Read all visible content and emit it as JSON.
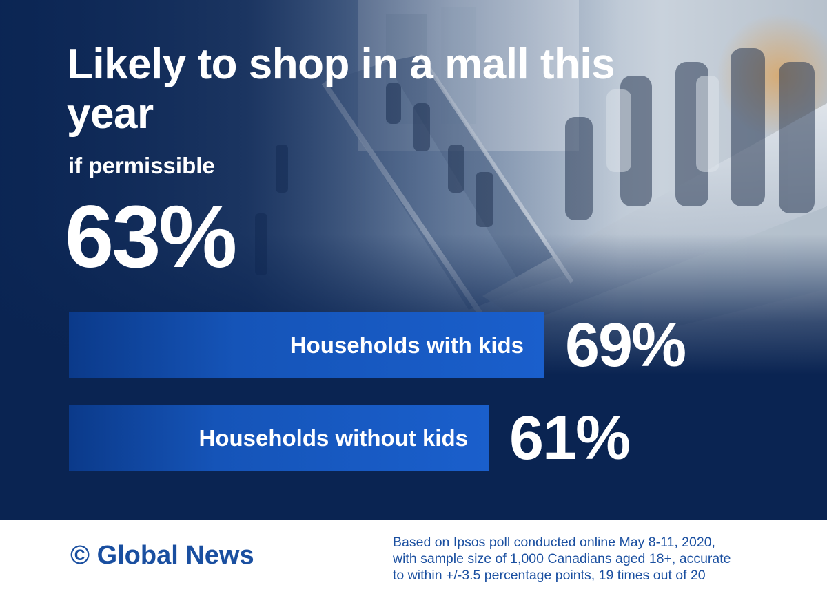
{
  "header": {
    "title": "Likely to shop in a mall this year",
    "subtitle": "if permissible",
    "overall_value": "63%"
  },
  "chart_data": {
    "type": "bar",
    "title": "Likely to shop in a mall this year",
    "subtitle": "if permissible",
    "overall": 63,
    "categories": [
      "Households with kids",
      "Households without kids"
    ],
    "values": [
      69,
      61
    ],
    "value_labels": [
      "69%",
      "61%"
    ],
    "unit": "%",
    "colors": {
      "bar": "#1a5fcc",
      "background": "#0d2a57"
    }
  },
  "footer": {
    "copyright_symbol": "©",
    "logo_text": "Global News",
    "source_line_1": "Based on Ipsos poll conducted online May 8-11, 2020,",
    "source_line_2": "with sample size of 1,000 Canadians aged 18+, accurate",
    "source_line_3": "to within +/-3.5 percentage points, 19 times out of 20"
  }
}
